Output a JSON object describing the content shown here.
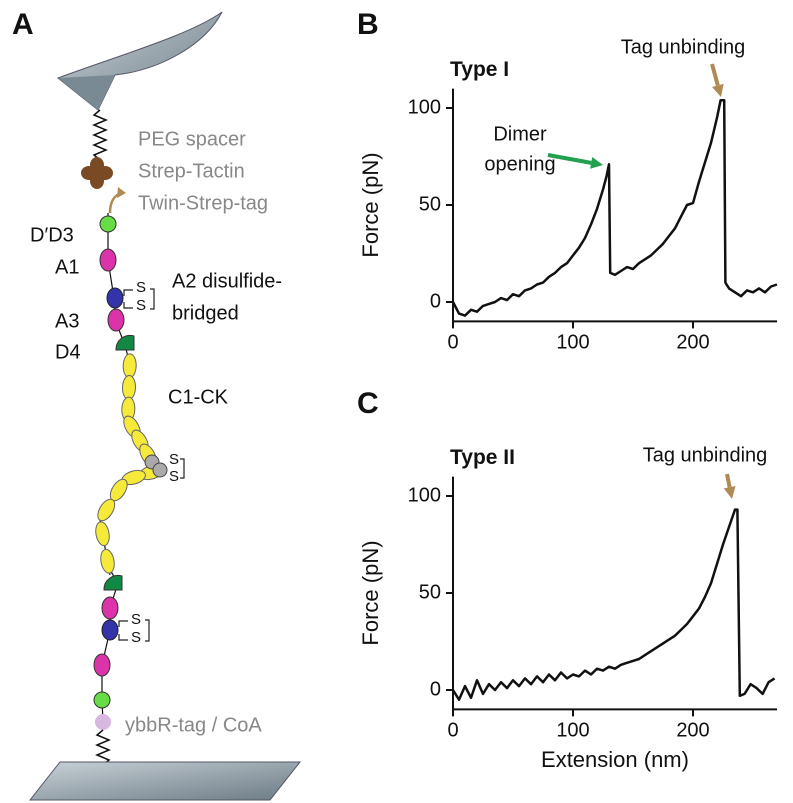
{
  "panel_labels": [
    "A",
    "B",
    "C"
  ],
  "diagram": {
    "labels": {
      "peg": "PEG spacer",
      "strep_tactin": "Strep-Tactin",
      "twin_strep": "Twin-Strep-tag",
      "dd3": "D′D3",
      "a1": "A1",
      "a2_line1": "A2 disulfide-",
      "a2_line2": "bridged",
      "a3": "A3",
      "d4": "D4",
      "c1ck": "C1-CK",
      "ybbr": "ybbR-tag / CoA"
    },
    "disulfide": "S"
  },
  "chart_data": [
    {
      "type": "line",
      "title": "Type I",
      "ylabel": "Force (pN)",
      "color": "#111111",
      "xlim": [
        0,
        270
      ],
      "ylim": [
        -10,
        110
      ],
      "xticks": [
        0,
        100,
        200
      ],
      "yticks": [
        0,
        50,
        100
      ],
      "x": [
        0,
        5,
        10,
        15,
        20,
        25,
        30,
        35,
        40,
        45,
        50,
        55,
        60,
        65,
        70,
        75,
        80,
        85,
        90,
        95,
        100,
        105,
        110,
        115,
        120,
        125,
        128,
        130,
        131,
        135,
        140,
        145,
        150,
        155,
        160,
        165,
        170,
        175,
        180,
        185,
        190,
        195,
        200,
        205,
        210,
        215,
        220,
        223,
        226,
        227,
        230,
        235,
        240,
        245,
        250,
        255,
        260,
        265,
        270
      ],
      "values": [
        0,
        -6,
        -7,
        -4,
        -5,
        -2,
        -1,
        0,
        2,
        1,
        4,
        3,
        6,
        7,
        9,
        10,
        13,
        15,
        18,
        20,
        24,
        28,
        33,
        40,
        48,
        58,
        65,
        71,
        15,
        14,
        16,
        18,
        17,
        20,
        22,
        24,
        27,
        30,
        34,
        38,
        44,
        50,
        51,
        62,
        72,
        82,
        95,
        104,
        104,
        10,
        7,
        5,
        3,
        6,
        5,
        7,
        5,
        8,
        9
      ],
      "annotations": [
        {
          "lines": [
            "Dimer",
            "opening"
          ],
          "color": "#22a050"
        },
        {
          "lines": [
            "Tag unbinding"
          ],
          "color": "#b08a55"
        }
      ]
    },
    {
      "type": "line",
      "title": "Type II",
      "ylabel": "Force (pN)",
      "xlabel": "Extension (nm)",
      "color": "#111111",
      "xlim": [
        0,
        270
      ],
      "ylim": [
        -10,
        110
      ],
      "xticks": [
        0,
        100,
        200
      ],
      "yticks": [
        0,
        50,
        100
      ],
      "x": [
        0,
        5,
        10,
        15,
        20,
        25,
        30,
        35,
        40,
        45,
        50,
        55,
        60,
        65,
        70,
        75,
        80,
        85,
        90,
        95,
        100,
        105,
        110,
        115,
        120,
        125,
        130,
        135,
        140,
        145,
        150,
        155,
        160,
        165,
        170,
        175,
        180,
        185,
        190,
        195,
        200,
        205,
        210,
        215,
        220,
        225,
        230,
        235,
        237,
        239,
        243,
        248,
        253,
        258,
        263,
        268
      ],
      "values": [
        0,
        -5,
        2,
        -4,
        5,
        -2,
        3,
        0,
        4,
        1,
        5,
        2,
        6,
        3,
        7,
        4,
        8,
        5,
        9,
        6,
        8,
        7,
        10,
        8,
        11,
        10,
        12,
        11,
        13,
        14,
        15,
        16,
        18,
        20,
        22,
        24,
        26,
        28,
        31,
        34,
        38,
        42,
        48,
        55,
        65,
        75,
        84,
        93,
        93,
        -3,
        -2,
        3,
        1,
        -2,
        4,
        6
      ],
      "annotations": [
        {
          "lines": [
            "Tag unbinding"
          ],
          "color": "#b08a55"
        }
      ]
    }
  ]
}
